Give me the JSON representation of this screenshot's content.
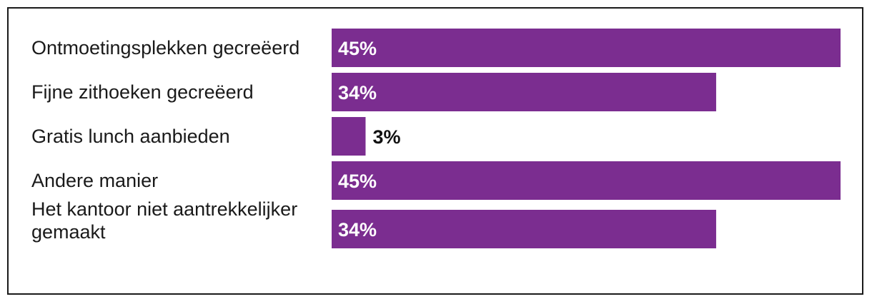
{
  "chart_data": {
    "type": "bar",
    "orientation": "horizontal",
    "categories": [
      "Ontmoetingsplekken gecreëerd",
      "Fijne zithoeken gecreëerd",
      "Gratis lunch aanbieden",
      "Andere manier",
      "Het kantoor niet aantrekkelijker gemaakt"
    ],
    "category_lines": [
      [
        "Ontmoetingsplekken gecreëerd"
      ],
      [
        "Fijne zithoeken gecreëerd"
      ],
      [
        "Gratis lunch aanbieden"
      ],
      [
        "Andere manier"
      ],
      [
        "Het kantoor niet aantrekkelijker",
        "gemaakt"
      ]
    ],
    "values": [
      45,
      34,
      3,
      45,
      34
    ],
    "value_labels": [
      "45%",
      "34%",
      "3%",
      "45%",
      "34%"
    ],
    "xlim": [
      0,
      45
    ],
    "grid": false,
    "legend": "none",
    "colors": {
      "bar": "#7b2d90",
      "label_inside": "#ffffff",
      "label_outside": "#111111",
      "text": "#1a1a1a",
      "border": "#1a1a1a"
    }
  }
}
